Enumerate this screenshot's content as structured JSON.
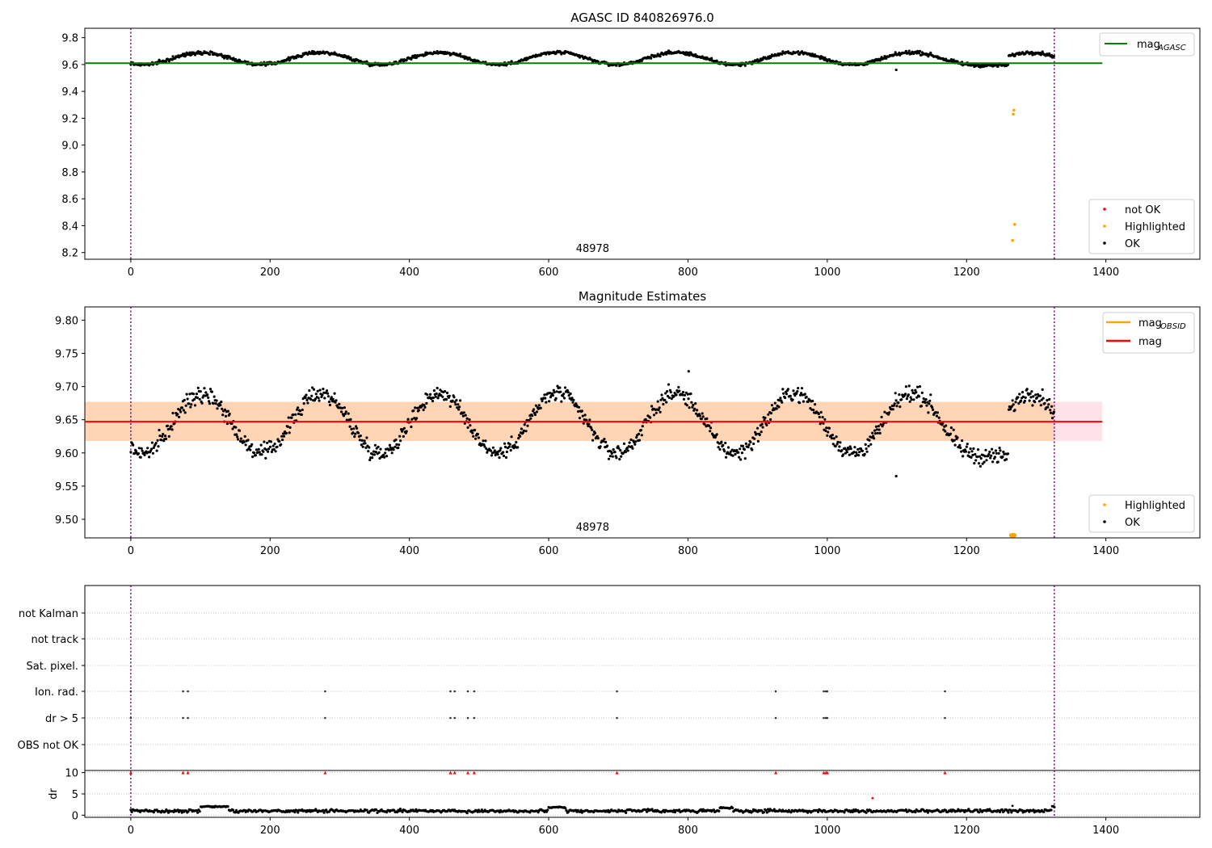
{
  "chart_data": [
    {
      "type": "scatter",
      "title": "AGASC ID 840826976.0",
      "xlim": [
        -66,
        1535
      ],
      "ylim": [
        8.15,
        9.87
      ],
      "xticks": [
        0,
        200,
        400,
        600,
        800,
        1000,
        1200,
        1400
      ],
      "yticks": [
        8.2,
        8.4,
        8.6,
        8.8,
        9.0,
        9.2,
        9.4,
        9.6,
        9.8
      ],
      "grid": false,
      "obsid_bounds": [
        0,
        1326
      ],
      "obsid_label": {
        "text": "48978",
        "x": 663
      },
      "mag_agasc": {
        "value": 9.61,
        "x_range": [
          -66,
          1395
        ],
        "color": "#008000"
      },
      "series": [
        {
          "name": "not OK",
          "color": "#ff0000",
          "points": []
        },
        {
          "name": "Highlighted",
          "color": "#ffa500",
          "points": [
            [
              1267,
              9.23
            ],
            [
              1268,
              9.26
            ],
            [
              1269,
              8.41
            ],
            [
              1266,
              8.29
            ]
          ]
        },
        {
          "name": "OK",
          "color": "#000000",
          "points": [
            [
              1099,
              9.56
            ]
          ]
        }
      ],
      "ok_curve": {
        "base": 9.645,
        "amplitude": 0.045,
        "period": 170,
        "phase_x": 60,
        "noise": 0.012,
        "x_range": [
          0,
          1326
        ],
        "step": 1.1,
        "dip": {
          "x_range": [
            1210,
            1260
          ],
          "value": 9.595
        }
      },
      "legend_top": {
        "position": "top-right",
        "entries": [
          {
            "label": "mag",
            "sub": "AGASC",
            "color": "#008000"
          }
        ]
      },
      "legend_bottom": {
        "position": "bottom-right",
        "entries": [
          {
            "label": "not OK",
            "color": "#ff0000"
          },
          {
            "label": "Highlighted",
            "color": "#ffa500"
          },
          {
            "label": "OK",
            "color": "#000000"
          }
        ]
      }
    },
    {
      "type": "scatter",
      "title": "Magnitude Estimates",
      "xlim": [
        -66,
        1535
      ],
      "ylim": [
        9.472,
        9.82
      ],
      "xticks": [
        0,
        200,
        400,
        600,
        800,
        1000,
        1200,
        1400
      ],
      "yticks": [
        9.5,
        9.55,
        9.6,
        9.65,
        9.7,
        9.75,
        9.8
      ],
      "grid": false,
      "obsid_bounds": [
        0,
        1326
      ],
      "obsid_label": {
        "text": "48978",
        "x": 663
      },
      "mag": {
        "value": 9.647,
        "x_range": [
          -66,
          1395
        ],
        "color": "#ff0000"
      },
      "mag_band": {
        "low": 9.618,
        "high": 9.677,
        "x_range": [
          -66,
          1395
        ],
        "color": "#ffc0cb"
      },
      "mag_obsid_band": {
        "low": 9.618,
        "high": 9.677,
        "x_range": [
          -66,
          1326
        ],
        "color": "#ffa500"
      },
      "series": [
        {
          "name": "Highlighted",
          "color": "#ffa500",
          "points": [
            [
              1264,
              9.476
            ],
            [
              1266,
              9.476
            ],
            [
              1267,
              9.476
            ],
            [
              1268,
              9.476
            ],
            [
              1269,
              9.476
            ]
          ]
        },
        {
          "name": "OK",
          "color": "#000000",
          "points": [
            [
              1099,
              9.565
            ],
            [
              801,
              9.723
            ]
          ]
        }
      ],
      "ok_curve": {
        "base": 9.645,
        "amplitude": 0.045,
        "period": 170,
        "phase_x": 60,
        "noise": 0.012,
        "x_range": [
          0,
          1326
        ],
        "step": 1.1,
        "dip": {
          "x_range": [
            1210,
            1260
          ],
          "value": 9.595
        }
      },
      "legend_top": {
        "position": "top-right",
        "entries": [
          {
            "label": "mag",
            "sub": "OBSID",
            "color": "#ffa500"
          },
          {
            "label": "mag",
            "sub": "",
            "color": "#ff0000"
          }
        ]
      },
      "legend_bottom": {
        "position": "bottom-right",
        "entries": [
          {
            "label": "Highlighted",
            "color": "#ffa500"
          },
          {
            "label": "OK",
            "color": "#000000"
          }
        ]
      }
    },
    {
      "type": "scatter",
      "title": "",
      "xlim": [
        -66,
        1535
      ],
      "obsid_bounds": [
        0,
        1326
      ],
      "flag_rows": [
        "not Kalman",
        "not track",
        "Sat. pixel.",
        "Ion. rad.",
        "dr > 5",
        "OBS not OK"
      ],
      "flag_points": {
        "Ion. rad.": [
          0,
          75,
          82,
          279,
          459,
          465,
          484,
          493,
          698,
          926,
          995,
          998,
          1000,
          1169
        ],
        "dr > 5": [
          0,
          75,
          82,
          279,
          459,
          465,
          484,
          493,
          698,
          926,
          995,
          998,
          1000,
          1169
        ]
      },
      "grid": true
    },
    {
      "type": "scatter",
      "title": "",
      "xlim": [
        -66,
        1535
      ],
      "ylim": [
        -0.5,
        10.5
      ],
      "xticks": [
        0,
        200,
        400,
        600,
        800,
        1000,
        1200,
        1400
      ],
      "yticks": [
        0,
        5,
        10
      ],
      "ylabel": "dr",
      "obsid_bounds": [
        0,
        1326
      ],
      "clipped_points_x": [
        0,
        75,
        82,
        279,
        459,
        465,
        484,
        493,
        698,
        926,
        995,
        998,
        1000,
        1169
      ],
      "outliers": [
        [
          1065,
          4.0
        ],
        [
          1266,
          2.2
        ]
      ],
      "dr_curve": {
        "x_range": [
          0,
          1326
        ],
        "step": 1.5,
        "base": 1.0,
        "noise": 0.35,
        "bumps": [
          [
            100,
            140,
            2.0
          ],
          [
            600,
            625,
            1.8
          ],
          [
            845,
            865,
            1.7
          ],
          [
            1322,
            1326,
            2.0
          ]
        ]
      }
    }
  ]
}
